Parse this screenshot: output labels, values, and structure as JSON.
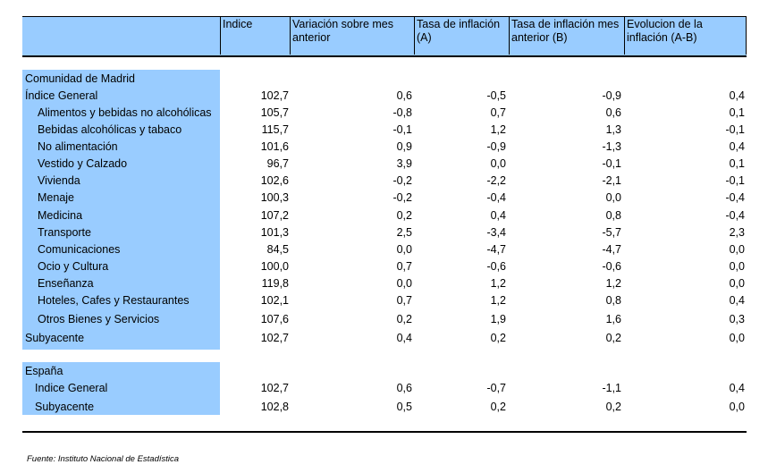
{
  "header": {
    "c1": "Indice",
    "c2": "Variación sobre mes anterior",
    "c3": "Tasa de inflación (A)",
    "c4": "Tasa de inflación mes anterior (B)",
    "c5": "Evolucion de la inflación (A-B)"
  },
  "madrid": {
    "section": "Comunidad de Madrid",
    "rows": [
      {
        "label": "Índice General",
        "indent": false,
        "v": [
          "102,7",
          "0,6",
          "-0,5",
          "-0,9",
          "0,4"
        ]
      },
      {
        "label": "Alimentos y bebidas no alcohólicas",
        "indent": true,
        "v": [
          "105,7",
          "-0,8",
          "0,7",
          "0,6",
          "0,1"
        ]
      },
      {
        "label": "Bebidas alcohólicas y tabaco",
        "indent": true,
        "v": [
          "115,7",
          "-0,1",
          "1,2",
          "1,3",
          "-0,1"
        ]
      },
      {
        "label": "No alimentación",
        "indent": true,
        "v": [
          "101,6",
          "0,9",
          "-0,9",
          "-1,3",
          "0,4"
        ]
      },
      {
        "label": "Vestido y Calzado",
        "indent": true,
        "v": [
          "96,7",
          "3,9",
          "0,0",
          "-0,1",
          "0,1"
        ]
      },
      {
        "label": "Vivienda",
        "indent": true,
        "v": [
          "102,6",
          "-0,2",
          "-2,2",
          "-2,1",
          "-0,1"
        ]
      },
      {
        "label": "Menaje",
        "indent": true,
        "v": [
          "100,3",
          "-0,2",
          "-0,4",
          "0,0",
          "-0,4"
        ]
      },
      {
        "label": "Medicina",
        "indent": true,
        "v": [
          "107,2",
          "0,2",
          "0,4",
          "0,8",
          "-0,4"
        ]
      },
      {
        "label": "Transporte",
        "indent": true,
        "v": [
          "101,3",
          "2,5",
          "-3,4",
          "-5,7",
          "2,3"
        ]
      },
      {
        "label": "Comunicaciones",
        "indent": true,
        "v": [
          "84,5",
          "0,0",
          "-4,7",
          "-4,7",
          "0,0"
        ]
      },
      {
        "label": "Ocio y Cultura",
        "indent": true,
        "v": [
          "100,0",
          "0,7",
          "-0,6",
          "-0,6",
          "0,0"
        ]
      },
      {
        "label": "Enseñanza",
        "indent": true,
        "v": [
          "119,8",
          "0,0",
          "1,2",
          "1,2",
          "0,0"
        ]
      },
      {
        "label": "Hoteles, Cafes y Restaurantes",
        "indent": true,
        "v": [
          "102,1",
          "0,7",
          "1,2",
          "0,8",
          "0,4"
        ]
      },
      {
        "label": "Otros Bienes y Servicios",
        "indent": true,
        "v": [
          "107,6",
          "0,2",
          "1,9",
          "1,6",
          "0,3"
        ]
      },
      {
        "label": "Subyacente",
        "indent": false,
        "v": [
          "102,7",
          "0,4",
          "0,2",
          "0,2",
          "0,0"
        ]
      }
    ]
  },
  "espana": {
    "section": "España",
    "rows": [
      {
        "label": "Indice General",
        "indent": true,
        "v": [
          "102,7",
          "0,6",
          "-0,7",
          "-1,1",
          "0,4"
        ]
      },
      {
        "label": "Subyacente",
        "indent": true,
        "v": [
          "102,8",
          "0,5",
          "0,2",
          "0,2",
          "0,0"
        ]
      }
    ]
  },
  "source": "Fuente: Instituto Nacional de Estadística"
}
